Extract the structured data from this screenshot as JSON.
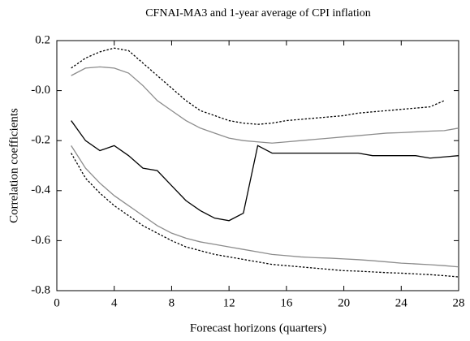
{
  "chart_data": {
    "type": "line",
    "title": "CFNAI-MA3 and 1-year average of CPI inflation",
    "xlabel": "Forecast horizons (quarters)",
    "ylabel": "Correlation coefficients",
    "x": [
      1,
      2,
      3,
      4,
      5,
      6,
      7,
      8,
      9,
      10,
      11,
      12,
      13,
      14,
      15,
      16,
      17,
      18,
      19,
      20,
      21,
      22,
      23,
      24,
      25,
      26,
      27,
      28
    ],
    "xlim": [
      0,
      28
    ],
    "xticks": [
      0,
      4,
      8,
      12,
      16,
      20,
      24,
      28
    ],
    "ylim": [
      -0.8,
      0.2
    ],
    "yticks": [
      -0.8,
      -0.6,
      -0.4,
      -0.2,
      {
        "value": 0,
        "label": "-0.0"
      },
      0.2
    ],
    "series": [
      {
        "color": "#000000",
        "dash": "dotted",
        "values": [
          0.09,
          0.13,
          0.155,
          0.17,
          0.16,
          0.11,
          0.06,
          0.01,
          -0.04,
          -0.08,
          -0.1,
          -0.12,
          -0.13,
          -0.135,
          -0.13,
          -0.12,
          -0.115,
          -0.11,
          -0.105,
          -0.1,
          -0.09,
          -0.085,
          -0.08,
          -0.075,
          -0.07,
          -0.065,
          -0.04,
          null
        ]
      },
      {
        "color": "#8c8c8c",
        "dash": "solid",
        "values": [
          0.06,
          0.09,
          0.095,
          0.09,
          0.07,
          0.02,
          -0.04,
          -0.08,
          -0.12,
          -0.15,
          -0.17,
          -0.19,
          -0.2,
          -0.205,
          -0.21,
          -0.205,
          -0.2,
          -0.195,
          -0.19,
          -0.185,
          -0.18,
          -0.175,
          -0.17,
          -0.168,
          -0.165,
          -0.162,
          -0.16,
          -0.15
        ]
      },
      {
        "color": "#000000",
        "dash": "solid",
        "values": [
          -0.12,
          -0.2,
          -0.24,
          -0.22,
          -0.26,
          -0.31,
          -0.32,
          -0.38,
          -0.44,
          -0.48,
          -0.51,
          -0.52,
          -0.49,
          -0.22,
          -0.25,
          -0.25,
          -0.25,
          -0.25,
          -0.25,
          -0.25,
          -0.25,
          -0.26,
          -0.26,
          -0.26,
          -0.26,
          -0.27,
          -0.265,
          -0.26
        ]
      },
      {
        "color": "#8c8c8c",
        "dash": "solid",
        "values": [
          -0.22,
          -0.31,
          -0.37,
          -0.42,
          -0.46,
          -0.5,
          -0.54,
          -0.57,
          -0.59,
          -0.605,
          -0.615,
          -0.625,
          -0.635,
          -0.645,
          -0.655,
          -0.66,
          -0.665,
          -0.668,
          -0.67,
          -0.673,
          -0.676,
          -0.68,
          -0.685,
          -0.69,
          -0.693,
          -0.696,
          -0.7,
          -0.705
        ]
      },
      {
        "color": "#000000",
        "dash": "dotted",
        "values": [
          -0.25,
          -0.35,
          -0.41,
          -0.46,
          -0.5,
          -0.54,
          -0.57,
          -0.6,
          -0.625,
          -0.64,
          -0.655,
          -0.665,
          -0.675,
          -0.685,
          -0.695,
          -0.7,
          -0.705,
          -0.71,
          -0.715,
          -0.72,
          -0.722,
          -0.725,
          -0.728,
          -0.73,
          -0.733,
          -0.736,
          -0.74,
          -0.745
        ]
      }
    ]
  }
}
